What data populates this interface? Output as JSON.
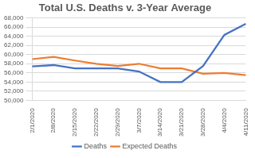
{
  "chart_data": {
    "type": "line",
    "title": "Total U.S. Deaths v. 3-Year Average",
    "categories": [
      "2/1/2020",
      "2/8/2020",
      "2/15/2020",
      "2/22/2020",
      "2/29/2020",
      "3/7/2020",
      "3/14/2020",
      "3/21/2020",
      "3/28/2020",
      "4/4/2020",
      "4/11/2020"
    ],
    "series": [
      {
        "name": "Deaths",
        "color": "#4472c4",
        "marker": "none",
        "line_style": "solid",
        "values": [
          57400,
          57700,
          57000,
          57000,
          57000,
          56300,
          54000,
          54000,
          57500,
          64300,
          66700
        ]
      },
      {
        "name": "Expected Deaths",
        "color": "#ed7d31",
        "marker": "none",
        "line_style": "solid",
        "values": [
          59000,
          59500,
          58700,
          58000,
          57500,
          58000,
          57000,
          57000,
          55800,
          56000,
          55500
        ]
      }
    ],
    "ylim": [
      50000,
      68000
    ],
    "yticks": [
      {
        "value": 50000,
        "label": "50,000"
      },
      {
        "value": 52000,
        "label": "52,000"
      },
      {
        "value": 54000,
        "label": "54,000"
      },
      {
        "value": 56000,
        "label": "56,000"
      },
      {
        "value": 58000,
        "label": "58,000"
      },
      {
        "value": 60000,
        "label": "60,000"
      },
      {
        "value": 62000,
        "label": "62,000"
      },
      {
        "value": 64000,
        "label": "64,000"
      },
      {
        "value": 66000,
        "label": "66,000"
      },
      {
        "value": 68000,
        "label": "68,000"
      }
    ],
    "grid": true,
    "legend": "bottom"
  }
}
